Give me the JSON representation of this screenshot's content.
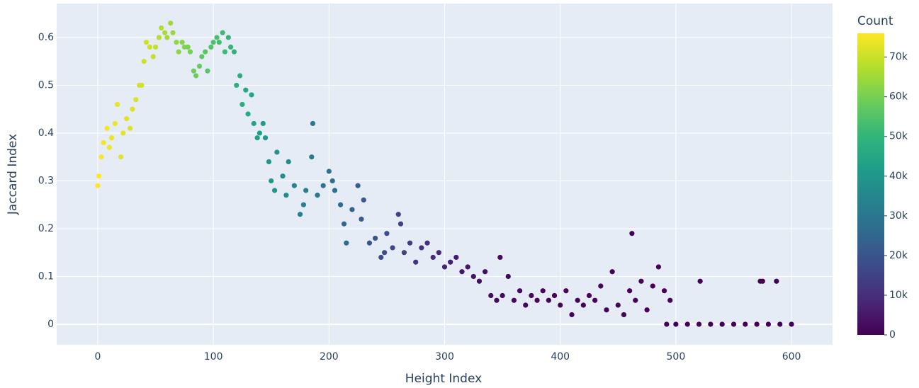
{
  "chart_data": {
    "type": "scatter",
    "x_label": "Height Index",
    "y_label": "Jaccard Index",
    "x": [
      0,
      1,
      3,
      5,
      8,
      10,
      12,
      15,
      17,
      20,
      22,
      25,
      28,
      30,
      33,
      36,
      38,
      40,
      42,
      45,
      48,
      50,
      53,
      55,
      58,
      60,
      63,
      65,
      68,
      70,
      73,
      75,
      78,
      80,
      83,
      85,
      88,
      90,
      93,
      95,
      98,
      100,
      103,
      105,
      108,
      110,
      113,
      115,
      118,
      120,
      123,
      125,
      128,
      130,
      133,
      135,
      138,
      140,
      143,
      145,
      148,
      150,
      153,
      155,
      160,
      163,
      165,
      170,
      175,
      178,
      180,
      185,
      186,
      190,
      195,
      200,
      203,
      205,
      210,
      213,
      215,
      220,
      225,
      228,
      230,
      235,
      240,
      245,
      248,
      250,
      255,
      260,
      262,
      265,
      270,
      275,
      280,
      285,
      290,
      295,
      300,
      305,
      310,
      315,
      320,
      325,
      330,
      335,
      340,
      345,
      348,
      350,
      355,
      360,
      365,
      370,
      375,
      380,
      385,
      390,
      395,
      400,
      405,
      410,
      415,
      420,
      425,
      430,
      435,
      440,
      445,
      450,
      455,
      460,
      462,
      465,
      470,
      475,
      480,
      485,
      490,
      492,
      495,
      500,
      510,
      520,
      521,
      530,
      540,
      550,
      560,
      570,
      573,
      575,
      580,
      587,
      590,
      600
    ],
    "values": [
      0.29,
      0.31,
      0.35,
      0.38,
      0.41,
      0.37,
      0.39,
      0.42,
      0.46,
      0.35,
      0.4,
      0.43,
      0.41,
      0.45,
      0.47,
      0.5,
      0.5,
      0.55,
      0.59,
      0.58,
      0.56,
      0.58,
      0.6,
      0.62,
      0.61,
      0.6,
      0.63,
      0.61,
      0.59,
      0.57,
      0.59,
      0.58,
      0.58,
      0.57,
      0.53,
      0.52,
      0.54,
      0.56,
      0.57,
      0.53,
      0.58,
      0.59,
      0.6,
      0.59,
      0.61,
      0.57,
      0.6,
      0.58,
      0.57,
      0.5,
      0.52,
      0.46,
      0.49,
      0.44,
      0.48,
      0.42,
      0.39,
      0.4,
      0.42,
      0.39,
      0.34,
      0.3,
      0.28,
      0.36,
      0.31,
      0.27,
      0.34,
      0.29,
      0.23,
      0.25,
      0.28,
      0.35,
      0.42,
      0.27,
      0.29,
      0.32,
      0.3,
      0.28,
      0.25,
      0.21,
      0.17,
      0.24,
      0.29,
      0.22,
      0.26,
      0.17,
      0.18,
      0.14,
      0.15,
      0.19,
      0.16,
      0.23,
      0.21,
      0.15,
      0.17,
      0.13,
      0.16,
      0.17,
      0.14,
      0.15,
      0.12,
      0.13,
      0.14,
      0.11,
      0.12,
      0.1,
      0.09,
      0.11,
      0.06,
      0.05,
      0.14,
      0.06,
      0.1,
      0.05,
      0.07,
      0.04,
      0.06,
      0.05,
      0.07,
      0.05,
      0.06,
      0.04,
      0.07,
      0.02,
      0.05,
      0.04,
      0.06,
      0.05,
      0.08,
      0.03,
      0.11,
      0.04,
      0.02,
      0.07,
      0.19,
      0.05,
      0.09,
      0.03,
      0.08,
      0.12,
      0.07,
      0,
      0.05,
      0,
      0,
      0,
      0.09,
      0,
      0,
      0,
      0,
      0,
      0.09,
      0.09,
      0,
      0.09,
      0,
      0
    ],
    "color_values": [
      76000,
      76000,
      75500,
      75000,
      75000,
      74500,
      74000,
      74000,
      73500,
      73000,
      73000,
      72500,
      72000,
      72000,
      71500,
      71000,
      71000,
      70500,
      70500,
      70000,
      69500,
      69000,
      68000,
      67500,
      66500,
      66000,
      65000,
      64500,
      63500,
      63000,
      62000,
      61500,
      60500,
      60000,
      59000,
      58500,
      58000,
      57000,
      56500,
      56000,
      55000,
      54500,
      54000,
      53000,
      52000,
      51500,
      50500,
      50000,
      49000,
      48000,
      47500,
      47000,
      46000,
      45500,
      44500,
      44000,
      43000,
      42500,
      42000,
      41000,
      40500,
      40000,
      39500,
      39000,
      37500,
      37000,
      36500,
      35000,
      33500,
      33000,
      32500,
      31500,
      31000,
      30500,
      29500,
      28500,
      28000,
      27500,
      26000,
      25500,
      25000,
      24000,
      23000,
      22000,
      21500,
      20500,
      19500,
      18500,
      18000,
      17500,
      16500,
      15500,
      15000,
      14500,
      13500,
      12500,
      11500,
      10500,
      9500,
      8500,
      7500,
      6500,
      5500,
      5000,
      4500,
      4000,
      3500,
      3000,
      2500,
      2200,
      2100,
      2000,
      1900,
      1800,
      1700,
      1600,
      1500,
      1400,
      1300,
      1200,
      1150,
      1100,
      1050,
      1000,
      950,
      900,
      850,
      800,
      750,
      700,
      700,
      650,
      600,
      550,
      550,
      500,
      500,
      450,
      450,
      400,
      400,
      350,
      350,
      300,
      250,
      200,
      200,
      150,
      100,
      100,
      80,
      60,
      60,
      50,
      40,
      30,
      20,
      0
    ],
    "xlim": [
      -35.5,
      635.5
    ],
    "xticks": [
      0,
      100,
      200,
      300,
      400,
      500,
      600
    ],
    "ylim": [
      -0.043,
      0.671
    ],
    "yticks": [
      0,
      0.1,
      0.2,
      0.3,
      0.4,
      0.5,
      0.6
    ],
    "grid": true,
    "colorscale": [
      "#440154",
      "#482878",
      "#3e4989",
      "#31688e",
      "#26828e",
      "#1f9e89",
      "#35b779",
      "#6ece58",
      "#b5de2b",
      "#fde725"
    ],
    "colorbar": {
      "title": "Count",
      "lim": [
        0,
        76000
      ],
      "ticks": [
        0,
        {
          "value": 10000,
          "label": "10k"
        },
        {
          "value": 20000,
          "label": "20k"
        },
        {
          "value": 30000,
          "label": "30k"
        },
        {
          "value": 40000,
          "label": "40k"
        },
        {
          "value": 50000,
          "label": "50k"
        },
        {
          "value": 60000,
          "label": "60k"
        },
        {
          "value": 70000,
          "label": "70k"
        }
      ]
    }
  }
}
